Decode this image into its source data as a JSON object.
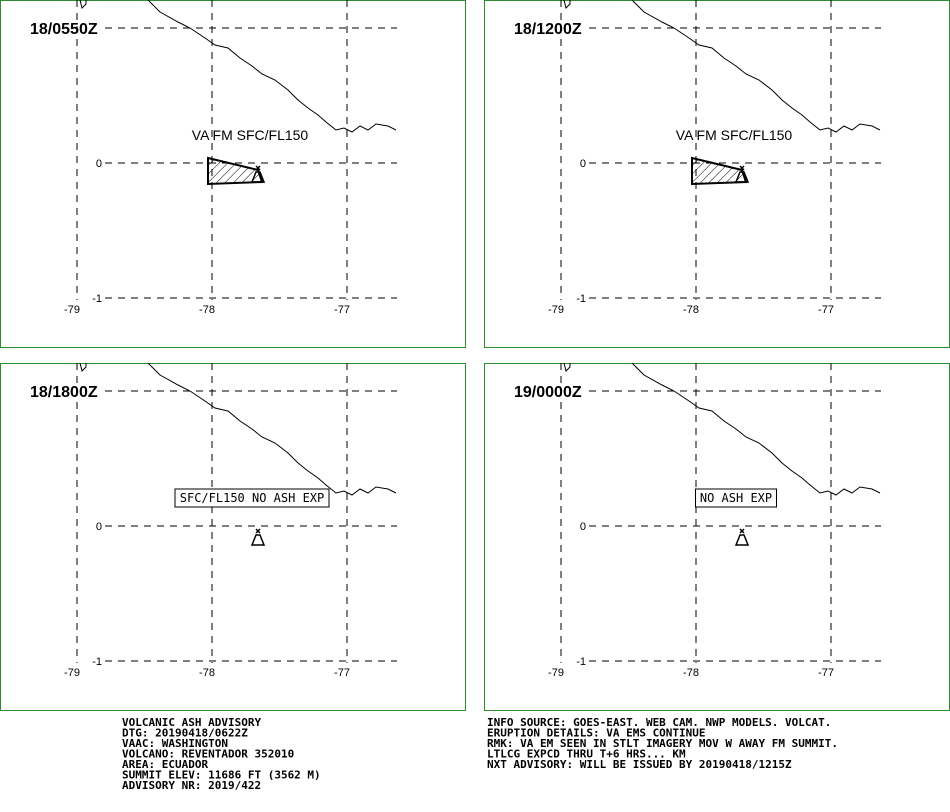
{
  "panels": [
    {
      "time": "18/0550Z",
      "label": "VA FM SFC/FL150",
      "boxed": false
    },
    {
      "time": "18/1200Z",
      "label": "VA FM SFC/FL150",
      "boxed": false
    },
    {
      "time": "18/1800Z",
      "label": "SFC/FL150 NO ASH EXP",
      "boxed": true
    },
    {
      "time": "19/0000Z",
      "label": "NO ASH EXP",
      "boxed": true
    }
  ],
  "lat_labels": [
    "0",
    "-1"
  ],
  "lon_labels": [
    "-79",
    "-78",
    "-77"
  ],
  "footer_left": [
    "VOLCANIC ASH ADVISORY",
    "DTG: 20190418/0622Z",
    "VAAC: WASHINGTON",
    "VOLCANO: REVENTADOR 352010",
    "AREA: ECUADOR",
    "SUMMIT ELEV: 11686 FT (3562 M)",
    "ADVISORY NR: 2019/422"
  ],
  "footer_right": [
    "INFO SOURCE: GOES-EAST. WEB CAM. NWP MODELS. VOLCAT.",
    "ERUPTION DETAILS: VA EMS CONTINUE",
    "RMK: VA EM SEEN IN STLT IMAGERY MOV W AWAY FM SUMMIT.",
    "LTLCG EXPCD THRU T+6 HRS... KM",
    "NXT ADVISORY: WILL BE ISSUED BY 20190418/1215Z"
  ]
}
